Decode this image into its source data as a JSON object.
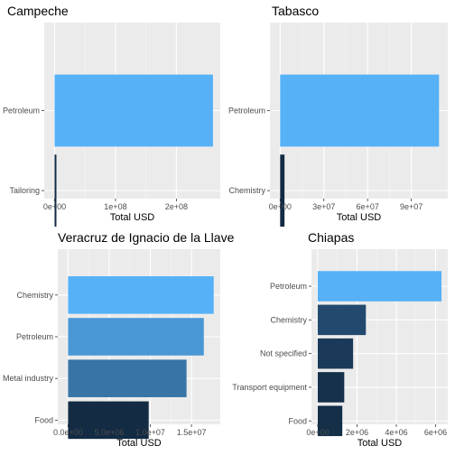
{
  "chart_data": [
    {
      "type": "bar",
      "orientation": "horizontal",
      "title": "Campeche",
      "xlabel": "Total USD",
      "categories": [
        "Petroleum",
        "Tailoring"
      ],
      "values": [
        260000000,
        3000000
      ],
      "bar_colors": [
        "#56b1f7",
        "#132b43"
      ],
      "xlim": [
        -17000000,
        272000000
      ],
      "xticks": [
        0,
        100000000,
        200000000
      ],
      "xtick_labels": [
        "0e+00",
        "1e+08",
        "2e+08"
      ],
      "grid": true
    },
    {
      "type": "bar",
      "orientation": "horizontal",
      "title": "Tabasco",
      "xlabel": "Total USD",
      "categories": [
        "Petroleum",
        "Chemistry"
      ],
      "values": [
        109000000,
        3000000
      ],
      "bar_colors": [
        "#56b1f7",
        "#132b43"
      ],
      "xlim": [
        -7000000,
        115000000
      ],
      "xticks": [
        0,
        30000000,
        60000000,
        90000000
      ],
      "xtick_labels": [
        "0e+00",
        "3e+07",
        "6e+07",
        "9e+07"
      ],
      "grid": true
    },
    {
      "type": "bar",
      "orientation": "horizontal",
      "title": "Veracruz de Ignacio de la Llave",
      "xlabel": "Total USD",
      "categories": [
        "Chemistry",
        "Petroleum",
        "Metal industry",
        "Food"
      ],
      "values": [
        17700000,
        16500000,
        14400000,
        9800000
      ],
      "bar_colors": [
        "#56b1f7",
        "#4a97d5",
        "#3874a6",
        "#132b43"
      ],
      "xlim": [
        -1250000,
        18500000
      ],
      "xticks": [
        0,
        5000000,
        10000000,
        15000000
      ],
      "xtick_labels": [
        "0.0e+00",
        "5.0e+06",
        "1.0e+07",
        "1.5e+07"
      ],
      "grid": true
    },
    {
      "type": "bar",
      "orientation": "horizontal",
      "title": "Chiapas",
      "xlabel": "Total USD",
      "categories": [
        "Petroleum",
        "Chemistry",
        "Not specified",
        "Transport equipment",
        "Food"
      ],
      "values": [
        6300000,
        2450000,
        1800000,
        1350000,
        1250000
      ],
      "bar_colors": [
        "#56b1f7",
        "#234a6e",
        "#1b3a59",
        "#16314c",
        "#152f49"
      ],
      "xlim": [
        -320000,
        6620000
      ],
      "xticks": [
        0,
        2000000,
        4000000,
        6000000
      ],
      "xtick_labels": [
        "0e+00",
        "2e+06",
        "4e+06",
        "6e+06"
      ],
      "grid": true
    }
  ]
}
